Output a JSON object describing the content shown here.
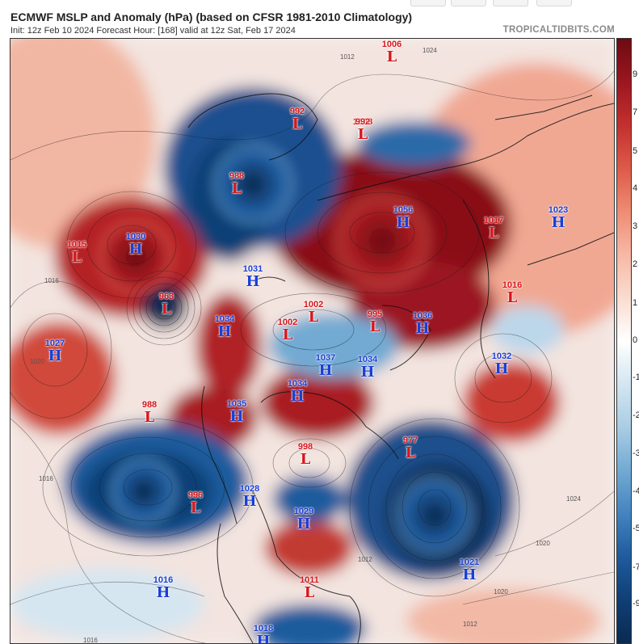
{
  "header": {
    "title": "ECMWF MSLP and Anomaly (hPa) (based on CFSR 1981-2010 Climatology)",
    "subtitle": "Init: 12z Feb 10 2024   Forecast Hour: [168]   valid at 12z Sat, Feb 17 2024",
    "site": "TROPICALTIDBITS.COM"
  },
  "colorbar": {
    "ticks": [
      "9",
      "7",
      "5",
      "4",
      "3",
      "2",
      "1",
      "0",
      "-1",
      "-2",
      "-3",
      "-4",
      "-5",
      "-7",
      "-9"
    ],
    "colors": [
      "#6e0a12",
      "#9b1620",
      "#c4302f",
      "#dd5a48",
      "#ef8c74",
      "#f7b8a4",
      "#fbdcd0",
      "#ffffff",
      "#d4e6f1",
      "#a9cde4",
      "#72aad3",
      "#4383bf",
      "#1f5b9d",
      "#0f3f76",
      "#0a2a52"
    ]
  },
  "centers": [
    {
      "type": "high",
      "value": "1030",
      "letter": "H"
    },
    {
      "type": "low",
      "value": "1015",
      "letter": "L"
    },
    {
      "type": "low",
      "value": "963",
      "letter": "L"
    },
    {
      "type": "high",
      "value": "1027",
      "letter": "H"
    },
    {
      "type": "low",
      "value": "988",
      "letter": "L"
    },
    {
      "type": "low",
      "value": "996",
      "letter": "L"
    },
    {
      "type": "high",
      "value": "1016",
      "letter": "H"
    },
    {
      "type": "high",
      "value": "1031",
      "letter": "H"
    },
    {
      "type": "high",
      "value": "1034",
      "letter": "H"
    },
    {
      "type": "low",
      "value": "1002",
      "letter": "L"
    },
    {
      "type": "low",
      "value": "1002",
      "letter": "L"
    },
    {
      "type": "high",
      "value": "1037",
      "letter": "H"
    },
    {
      "type": "high",
      "value": "1034",
      "letter": "H"
    },
    {
      "type": "high",
      "value": "1034",
      "letter": "H"
    },
    {
      "type": "high",
      "value": "1035",
      "letter": "H"
    },
    {
      "type": "low",
      "value": "998",
      "letter": "L"
    },
    {
      "type": "high",
      "value": "1028",
      "letter": "H"
    },
    {
      "type": "high",
      "value": "1029",
      "letter": "H"
    },
    {
      "type": "low",
      "value": "1011",
      "letter": "L"
    },
    {
      "type": "high",
      "value": "1018",
      "letter": "H"
    },
    {
      "type": "low",
      "value": "992",
      "letter": "L"
    },
    {
      "type": "low",
      "value": "988",
      "letter": "L"
    },
    {
      "type": "low",
      "value": "1008",
      "letter": "L"
    },
    {
      "type": "low",
      "value": "992",
      "letter": "L"
    },
    {
      "type": "low",
      "value": "1006",
      "letter": "L"
    },
    {
      "type": "high",
      "value": "1056",
      "letter": "H"
    },
    {
      "type": "low",
      "value": "1017",
      "letter": "L"
    },
    {
      "type": "high",
      "value": "1023",
      "letter": "H"
    },
    {
      "type": "low",
      "value": "1016",
      "letter": "L"
    },
    {
      "type": "low",
      "value": "995",
      "letter": "L"
    },
    {
      "type": "high",
      "value": "1036",
      "letter": "H"
    },
    {
      "type": "high",
      "value": "1032",
      "letter": "H"
    },
    {
      "type": "low",
      "value": "977",
      "letter": "L"
    },
    {
      "type": "high",
      "value": "1021",
      "letter": "H"
    }
  ],
  "isobar_labels": [
    "1012",
    "1020",
    "1016",
    "1024",
    "1020",
    "1016",
    "1012",
    "1020",
    "1024",
    "1016",
    "1012"
  ]
}
